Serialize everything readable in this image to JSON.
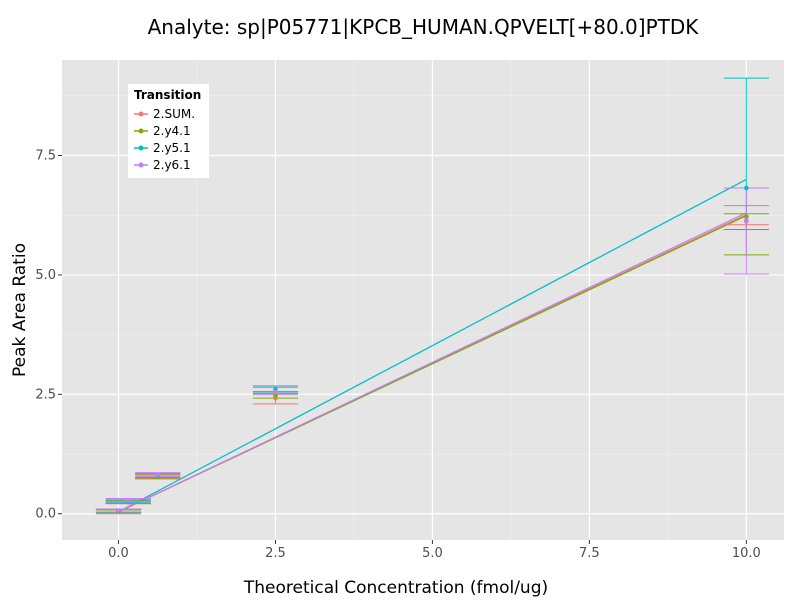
{
  "chart_data": {
    "type": "line",
    "title": "Analyte: sp|P05771|KPCB_HUMAN.QPVELT[+80.0]PTDK",
    "xlabel": "Theoretical Concentration (fmol/ug)",
    "ylabel": "Peak Area Ratio",
    "xlim": [
      -0.9,
      10.6
    ],
    "ylim": [
      -0.55,
      9.5
    ],
    "xticks": [
      0.0,
      2.5,
      5.0,
      7.5,
      10.0
    ],
    "xtick_labels": [
      "0.0",
      "2.5",
      "5.0",
      "7.5",
      "10.0"
    ],
    "yticks": [
      0.0,
      2.5,
      5.0,
      7.5
    ],
    "ytick_labels": [
      "0.0",
      "2.5",
      "5.0",
      "7.5"
    ],
    "grid": true,
    "legend": {
      "title": "Transition",
      "position": "top-left"
    },
    "series": [
      {
        "name": "2.SUM.",
        "color": "#F8766D",
        "points": [
          {
            "x": 0.0,
            "y": 0.04,
            "ymin": 0.0,
            "ymax": 0.08
          },
          {
            "x": 0.156,
            "y": 0.24,
            "ymin": 0.21,
            "ymax": 0.27
          },
          {
            "x": 0.625,
            "y": 0.78,
            "ymin": 0.74,
            "ymax": 0.82
          },
          {
            "x": 2.5,
            "y": 2.42,
            "ymin": 2.3,
            "ymax": 2.56
          },
          {
            "x": 10.0,
            "y": 6.12,
            "ymin": 6.05,
            "ymax": 6.45
          }
        ],
        "fit": {
          "x": [
            0.0,
            10.0
          ],
          "y": [
            0.04,
            6.26
          ]
        }
      },
      {
        "name": "2.y4.1",
        "color": "#7CAE00",
        "points": [
          {
            "x": 0.0,
            "y": 0.05,
            "ymin": 0.02,
            "ymax": 0.08
          },
          {
            "x": 0.156,
            "y": 0.25,
            "ymin": 0.22,
            "ymax": 0.28
          },
          {
            "x": 0.625,
            "y": 0.77,
            "ymin": 0.73,
            "ymax": 0.81
          },
          {
            "x": 2.5,
            "y": 2.47,
            "ymin": 2.42,
            "ymax": 2.52
          },
          {
            "x": 10.0,
            "y": 6.22,
            "ymin": 5.42,
            "ymax": 6.28
          }
        ],
        "fit": {
          "x": [
            0.0,
            10.0
          ],
          "y": [
            0.04,
            6.24
          ]
        }
      },
      {
        "name": "2.y5.1",
        "color": "#00BFC4",
        "points": [
          {
            "x": 0.0,
            "y": 0.06,
            "ymin": 0.03,
            "ymax": 0.09
          },
          {
            "x": 0.156,
            "y": 0.26,
            "ymin": 0.23,
            "ymax": 0.29
          },
          {
            "x": 0.625,
            "y": 0.8,
            "ymin": 0.76,
            "ymax": 0.84
          },
          {
            "x": 2.5,
            "y": 2.6,
            "ymin": 2.55,
            "ymax": 2.65
          },
          {
            "x": 10.0,
            "y": 6.82,
            "ymin": 5.95,
            "ymax": 9.12
          }
        ],
        "fit": {
          "x": [
            0.0,
            10.0
          ],
          "y": [
            0.04,
            7.0
          ]
        }
      },
      {
        "name": "2.y6.1",
        "color": "#C77CFF",
        "points": [
          {
            "x": 0.0,
            "y": 0.07,
            "ymin": 0.04,
            "ymax": 0.1
          },
          {
            "x": 0.156,
            "y": 0.28,
            "ymin": 0.25,
            "ymax": 0.32
          },
          {
            "x": 0.625,
            "y": 0.82,
            "ymin": 0.78,
            "ymax": 0.86
          },
          {
            "x": 2.5,
            "y": 2.55,
            "ymin": 2.5,
            "ymax": 2.68
          },
          {
            "x": 10.0,
            "y": 6.14,
            "ymin": 5.02,
            "ymax": 6.82
          }
        ],
        "fit": {
          "x": [
            0.0,
            10.0
          ],
          "y": [
            0.04,
            6.3
          ]
        }
      }
    ]
  }
}
